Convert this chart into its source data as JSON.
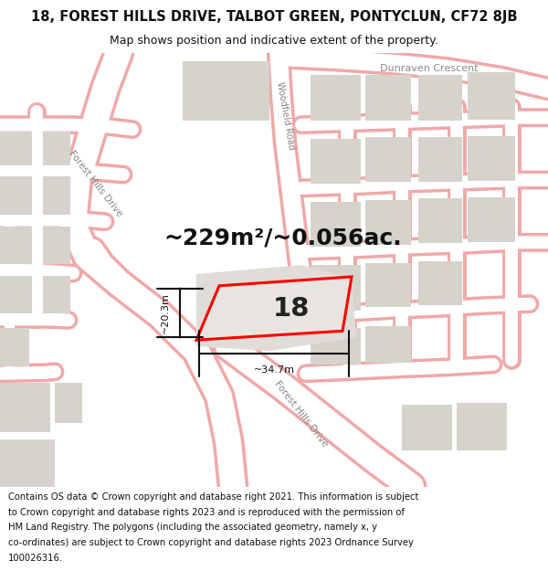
{
  "title": "18, FOREST HILLS DRIVE, TALBOT GREEN, PONTYCLUN, CF72 8JB",
  "subtitle": "Map shows position and indicative extent of the property.",
  "area_text": "~229m²/~0.056ac.",
  "number_label": "18",
  "dim_width": "~34.7m",
  "dim_height": "~20.3m",
  "footer_lines": [
    "Contains OS data © Crown copyright and database right 2021. This information is subject",
    "to Crown copyright and database rights 2023 and is reproduced with the permission of",
    "HM Land Registry. The polygons (including the associated geometry, namely x, y",
    "co-ordinates) are subject to Crown copyright and database rights 2023 Ordnance Survey",
    "100026316."
  ],
  "map_bg": "#f2f0ed",
  "road_fill": "#ffffff",
  "road_outline": "#f0a8a8",
  "building_color": "#d6d3cc",
  "plot_edge": "#ff0000",
  "dim_color": "#111111",
  "label_color": "#888888",
  "title_fontsize": 10.5,
  "subtitle_fontsize": 9,
  "area_fontsize": 18,
  "prop_label_fontsize": 21,
  "footer_fontsize": 7.2,
  "road_label_fontsize": 7.5
}
